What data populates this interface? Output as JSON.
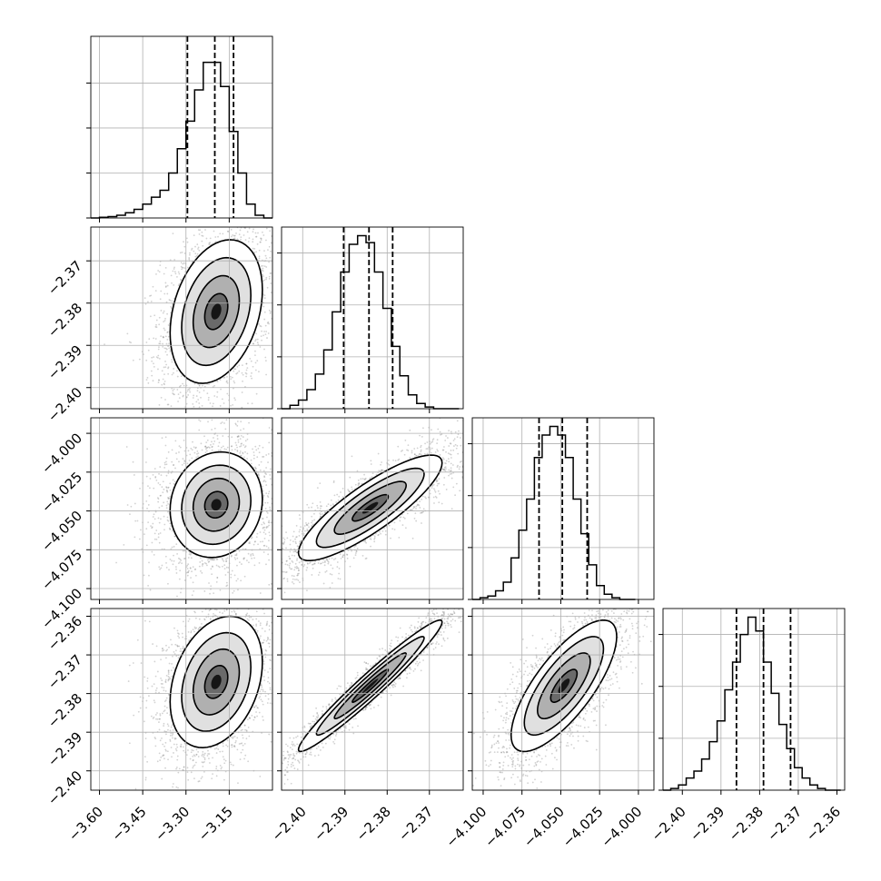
{
  "chart_data": {
    "type": "corner",
    "grid": true,
    "parameters": [
      {
        "axis_range": [
          -3.63,
          -3.0
        ],
        "tick_labels": [
          "−3.60",
          "−3.45",
          "−3.30",
          "−3.15"
        ],
        "tick_values": [
          -3.6,
          -3.45,
          -3.3,
          -3.15
        ],
        "hist_y_ticks": [
          0,
          0.26,
          0.52,
          0.78
        ],
        "quantiles": [
          -3.295,
          -3.2,
          -3.135
        ],
        "histogram_bin_edges": [
          -3.63,
          -3.6,
          -3.57,
          -3.54,
          -3.51,
          -3.48,
          -3.45,
          -3.42,
          -3.39,
          -3.36,
          -3.33,
          -3.3,
          -3.27,
          -3.24,
          -3.21,
          -3.18,
          -3.15,
          -3.12,
          -3.09,
          -3.06,
          -3.03,
          -3.0
        ],
        "histogram_heights": [
          0,
          0.004,
          0.008,
          0.016,
          0.03,
          0.05,
          0.08,
          0.12,
          0.16,
          0.26,
          0.4,
          0.56,
          0.74,
          0.9,
          0.9,
          0.76,
          0.5,
          0.26,
          0.08,
          0.016,
          0
        ]
      },
      {
        "axis_range": [
          -2.405,
          -2.362
        ],
        "tick_labels": [
          "−2.40",
          "−2.39",
          "−2.38",
          "−2.37"
        ],
        "tick_values": [
          -2.4,
          -2.39,
          -2.38,
          -2.37
        ],
        "hist_y_ticks": [
          0,
          0.3,
          0.6,
          0.9
        ],
        "quantiles": [
          -2.3903,
          -2.3843,
          -2.3787
        ],
        "histogram_bin_edges": [
          -2.405,
          -2.403,
          -2.401,
          -2.399,
          -2.397,
          -2.395,
          -2.393,
          -2.391,
          -2.389,
          -2.387,
          -2.385,
          -2.383,
          -2.381,
          -2.379,
          -2.377,
          -2.375,
          -2.373,
          -2.371,
          -2.369,
          -2.367,
          -2.365,
          -2.363
        ],
        "histogram_heights": [
          0,
          0.02,
          0.05,
          0.11,
          0.2,
          0.34,
          0.56,
          0.79,
          0.95,
          1.0,
          0.96,
          0.79,
          0.58,
          0.36,
          0.19,
          0.08,
          0.03,
          0.01,
          0,
          0,
          0
        ]
      },
      {
        "axis_range": [
          -4.107,
          -3.99
        ],
        "tick_labels": [
          "−4.100",
          "−4.075",
          "−4.050",
          "−4.025",
          "−4.000"
        ],
        "tick_values": [
          -4.1,
          -4.075,
          -4.05,
          -4.025,
          -4.0
        ],
        "hist_y_ticks": [
          0,
          0.3,
          0.6,
          0.9
        ],
        "quantiles": [
          -4.064,
          -4.049,
          -4.033
        ],
        "histogram_bin_edges": [
          -4.107,
          -4.102,
          -4.097,
          -4.092,
          -4.087,
          -4.082,
          -4.077,
          -4.072,
          -4.067,
          -4.062,
          -4.057,
          -4.052,
          -4.047,
          -4.042,
          -4.037,
          -4.032,
          -4.027,
          -4.022,
          -4.017,
          -4.012,
          -4.007,
          -4.002
        ],
        "histogram_heights": [
          0,
          0.01,
          0.02,
          0.05,
          0.1,
          0.24,
          0.4,
          0.58,
          0.82,
          0.95,
          1.0,
          0.95,
          0.82,
          0.58,
          0.38,
          0.2,
          0.08,
          0.03,
          0.01,
          0,
          0
        ]
      },
      {
        "axis_range": [
          -2.405,
          -2.358
        ],
        "tick_labels": [
          "−2.40",
          "−2.39",
          "−2.38",
          "−2.37",
          "−2.36"
        ],
        "tick_values": [
          -2.4,
          -2.39,
          -2.38,
          -2.37,
          -2.36
        ],
        "hist_y_ticks": [
          0,
          0.3,
          0.6,
          0.9
        ],
        "quantiles": [
          -2.386,
          -2.379,
          -2.372
        ],
        "histogram_bin_edges": [
          -2.405,
          -2.403,
          -2.401,
          -2.399,
          -2.397,
          -2.395,
          -2.393,
          -2.391,
          -2.389,
          -2.387,
          -2.385,
          -2.383,
          -2.381,
          -2.379,
          -2.377,
          -2.375,
          -2.373,
          -2.371,
          -2.369,
          -2.367,
          -2.365,
          -2.363,
          -2.361,
          -2.359
        ],
        "histogram_heights": [
          0,
          0.01,
          0.03,
          0.07,
          0.11,
          0.18,
          0.28,
          0.4,
          0.58,
          0.74,
          0.9,
          1.0,
          0.92,
          0.74,
          0.56,
          0.38,
          0.24,
          0.13,
          0.07,
          0.03,
          0.01,
          0,
          0
        ]
      }
    ],
    "pairs": [
      {
        "row": 1,
        "col": 0,
        "mean": [
          -3.195,
          -2.382
        ],
        "sd": [
          0.08,
          0.0085
        ],
        "rho": 0.3
      },
      {
        "row": 2,
        "col": 0,
        "mean": [
          -3.195,
          -4.046
        ],
        "sd": [
          0.08,
          0.017
        ],
        "rho": 0.1
      },
      {
        "row": 2,
        "col": 1,
        "mean": [
          -2.384,
          -4.048
        ],
        "sd": [
          0.0085,
          0.017
        ],
        "rho": 0.85
      },
      {
        "row": 3,
        "col": 0,
        "mean": [
          -3.195,
          -2.377
        ],
        "sd": [
          0.08,
          0.0085
        ],
        "rho": 0.3
      },
      {
        "row": 3,
        "col": 1,
        "mean": [
          -2.384,
          -2.378
        ],
        "sd": [
          0.0085,
          0.0085
        ],
        "rho": 0.97
      },
      {
        "row": 3,
        "col": 2,
        "mean": [
          -4.048,
          -2.378
        ],
        "sd": [
          0.017,
          0.0085
        ],
        "rho": 0.75
      }
    ],
    "contour_levels": [
      0.5,
      1.0,
      1.5,
      2.0
    ]
  }
}
